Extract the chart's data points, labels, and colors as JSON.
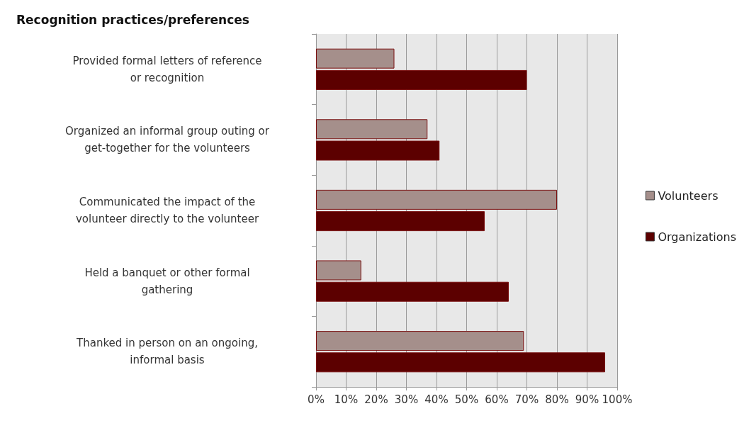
{
  "chart_data": {
    "type": "bar",
    "orientation": "horizontal",
    "title": "Recognition practices/preferences",
    "categories": [
      "Provided formal letters of reference or recognition",
      "Organized an informal group outing or get-together for the volunteers",
      "Communicated the impact of the volunteer directly to the volunteer",
      "Held a banquet or other formal gathering",
      "Thanked in person on an ongoing, informal basis"
    ],
    "series": [
      {
        "name": "Volunteers",
        "color": "#a58f8b",
        "values": [
          26,
          37,
          80,
          15,
          69
        ]
      },
      {
        "name": "Organizations",
        "color": "#5c0000",
        "values": [
          70,
          41,
          56,
          64,
          96
        ]
      }
    ],
    "xlim": [
      0,
      100
    ],
    "xticks": [
      {
        "value": 0,
        "label": "0%"
      },
      {
        "value": 10,
        "label": "10%"
      },
      {
        "value": 20,
        "label": "20%"
      },
      {
        "value": 30,
        "label": "30%"
      },
      {
        "value": 40,
        "label": "40%"
      },
      {
        "value": 50,
        "label": "50%"
      },
      {
        "value": 60,
        "label": "60%"
      },
      {
        "value": 70,
        "label": "70%"
      },
      {
        "value": 80,
        "label": "80%"
      },
      {
        "value": 90,
        "label": "90%"
      },
      {
        "value": 100,
        "label": "100%"
      }
    ],
    "grid": "x",
    "legend": "right"
  }
}
